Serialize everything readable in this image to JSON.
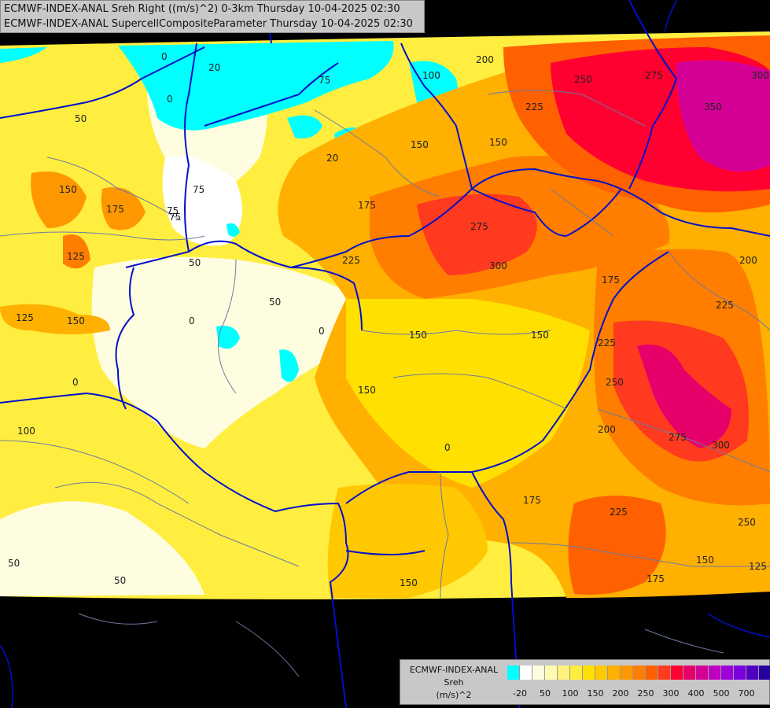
{
  "header": {
    "line1": "ECMWF-INDEX-ANAL Sreh Right ((m/s)^2) 0-3km Thursday 10-04-2025 02:30",
    "line2": "ECMWF-INDEX-ANAL SupercellCompositeParameter Thursday 10-04-2025 02:30"
  },
  "legend": {
    "title_line1": "ECMWF-INDEX-ANAL",
    "title_line2": "Sreh",
    "title_line3": "(m/s)^2",
    "colors": [
      "#00ffff",
      "#ffffff",
      "#fffde0",
      "#fffbb0",
      "#fff27a",
      "#ffee40",
      "#ffe000",
      "#ffc800",
      "#ffb000",
      "#ff9800",
      "#ff7e00",
      "#ff6000",
      "#ff3a1e",
      "#ff0030",
      "#e8006a",
      "#d40096",
      "#c000c0",
      "#a000d8",
      "#7a00e0",
      "#5000c0",
      "#2800a0",
      "#000080"
    ],
    "ticks": [
      "-20",
      "50",
      "100",
      "150",
      "200",
      "250",
      "300",
      "400",
      "500",
      "700"
    ]
  },
  "contour_labels": [
    "0",
    "20",
    "0",
    "50",
    "75",
    "100",
    "175",
    "125",
    "150",
    "75",
    "50",
    "0",
    "50",
    "0",
    "75",
    "20",
    "125",
    "150",
    "200",
    "250",
    "275",
    "300",
    "350",
    "225",
    "175",
    "200",
    "275",
    "300",
    "225",
    "150",
    "175",
    "225",
    "150",
    "150",
    "225",
    "250",
    "275",
    "300",
    "200",
    "150",
    "150",
    "175",
    "225",
    "250",
    "150",
    "175",
    "125",
    "100",
    "50",
    "50",
    "0",
    "75",
    "150",
    "0"
  ],
  "colors": {
    "background": "#000000",
    "border_country": "#0010cc",
    "border_region": "#6d7aa0"
  }
}
